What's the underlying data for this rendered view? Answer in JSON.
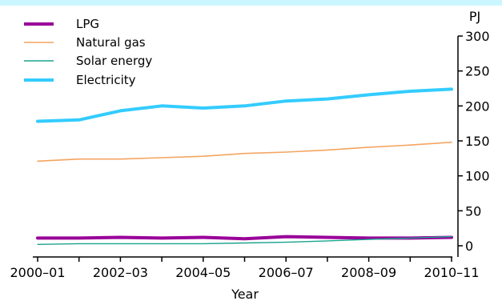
{
  "chart_data": {
    "type": "line",
    "title": "",
    "xlabel": "Year",
    "ylabel": "PJ",
    "ylim": [
      0,
      300
    ],
    "yticks": [
      0,
      50,
      100,
      150,
      200,
      250,
      300
    ],
    "x": [
      "2000–01",
      "2001–02",
      "2002–03",
      "2003–04",
      "2004–05",
      "2005–06",
      "2006–07",
      "2007–08",
      "2008–09",
      "2009–10",
      "2010–11"
    ],
    "xtick_labels": [
      "2000–01",
      "2002–03",
      "2004–05",
      "2006–07",
      "2008–09",
      "2010–11"
    ],
    "legend_position": "top-left",
    "grid": false,
    "series": [
      {
        "name": "LPG",
        "color": "#990099",
        "values": [
          11,
          11,
          12,
          11,
          12,
          10,
          13,
          12,
          11,
          11,
          12
        ]
      },
      {
        "name": "Natural gas",
        "color": "#f4a460",
        "values": [
          121,
          124,
          124,
          126,
          128,
          132,
          134,
          137,
          141,
          144,
          148
        ]
      },
      {
        "name": "Solar energy",
        "color": "#1ba38f",
        "values": [
          2,
          3,
          3,
          3,
          3,
          4,
          5,
          7,
          9,
          11,
          13
        ]
      },
      {
        "name": "Electricity",
        "color": "#33ccff",
        "values": [
          178,
          180,
          193,
          200,
          197,
          200,
          207,
          210,
          216,
          221,
          224
        ]
      }
    ]
  }
}
